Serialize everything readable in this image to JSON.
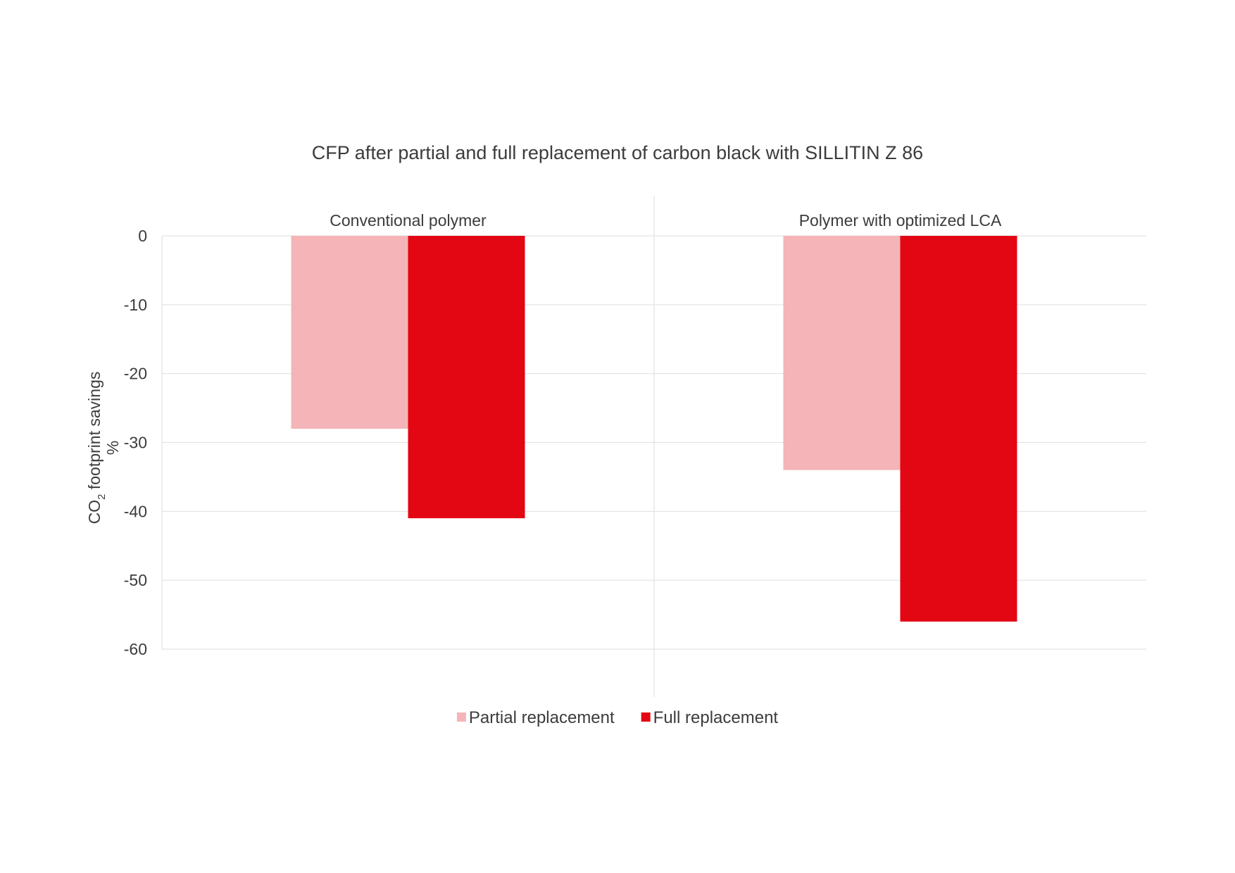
{
  "chart_data": {
    "type": "bar",
    "title": "CFP after partial and full replacement of carbon black with SILLITIN Z 86",
    "ylabel": {
      "prefix": "CO",
      "subscript": "2",
      "suffix": " footprint savings",
      "unit": "%"
    },
    "categories": [
      "Conventional polymer",
      "Polymer with optimized LCA"
    ],
    "series": [
      {
        "name": "Partial replacement",
        "color": "#f5b4b7",
        "values": [
          -28,
          -34
        ]
      },
      {
        "name": "Full replacement",
        "color": "#e30613",
        "values": [
          -41,
          -56
        ]
      }
    ],
    "ylim": [
      -60,
      0
    ],
    "yticks": [
      0,
      -10,
      -20,
      -30,
      -40,
      -50,
      -60
    ],
    "tick_labels": [
      "0",
      "-10",
      "-20",
      "-30",
      "-40",
      "-50",
      "-60"
    ],
    "grid": true,
    "legend": "bottom-center",
    "category_label_position": "top"
  }
}
